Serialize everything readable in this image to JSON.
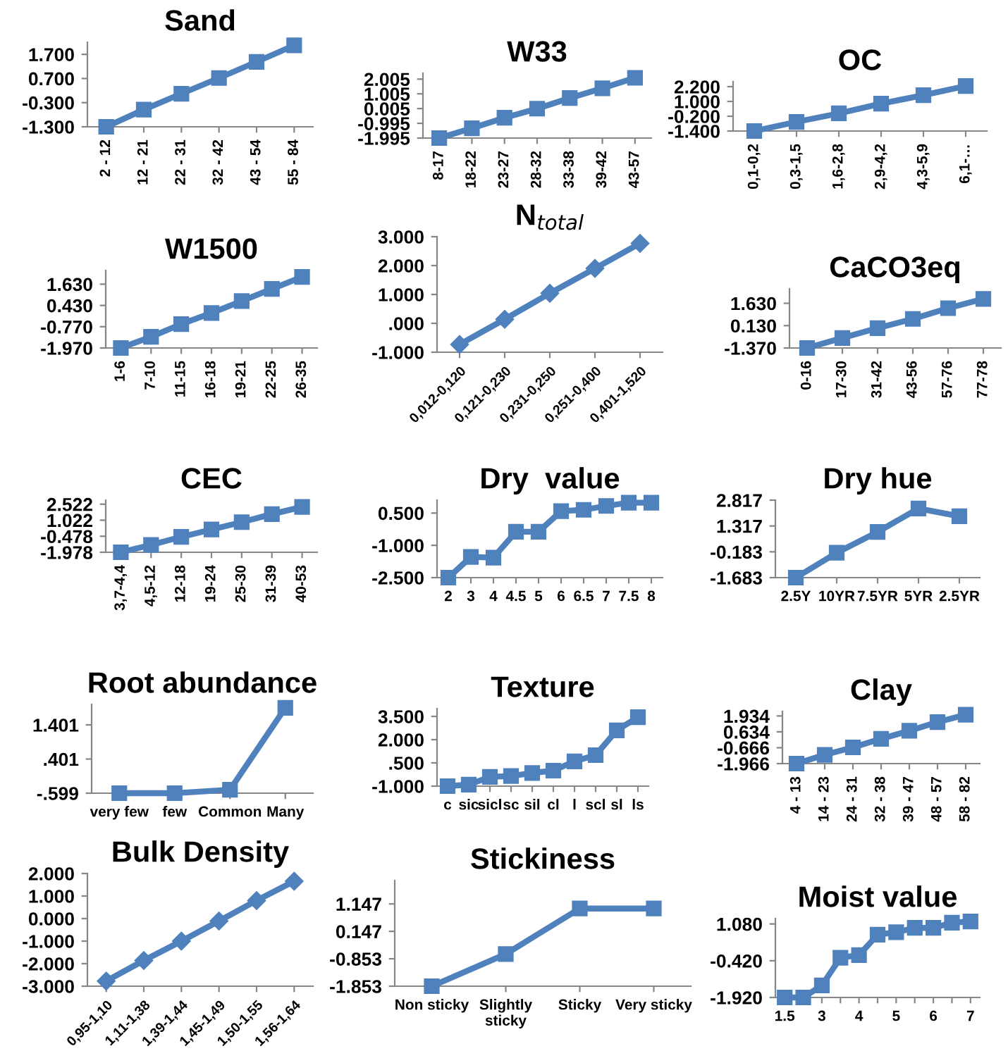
{
  "chart_data": [
    {
      "type": "line",
      "title": "Sand",
      "categories": [
        "2 - 12",
        "12 - 21",
        "22 - 31",
        "32 - 42",
        "43 - 54",
        "55 - 84"
      ],
      "values": [
        -1.3,
        -0.59,
        0.07,
        0.72,
        1.39,
        2.07
      ],
      "color": "#4f81bd",
      "marker": "square",
      "ylim": [
        -1.3,
        2.2
      ],
      "yticks": [
        {
          "value": -1.3,
          "label": "-1.300"
        },
        {
          "value": -0.3,
          "label": "-0.300"
        },
        {
          "value": 0.7,
          "label": "0.700"
        },
        {
          "value": 1.7,
          "label": "1.700"
        }
      ],
      "grid": false
    },
    {
      "type": "line",
      "title": "W33",
      "categories": [
        "8-17",
        "18-22",
        "23-27",
        "28-32",
        "33-38",
        "39-42",
        "43-57"
      ],
      "values": [
        -1.995,
        -1.33,
        -0.62,
        0.0,
        0.72,
        1.38,
        2.09
      ],
      "color": "#4f81bd",
      "marker": "square",
      "ylim": [
        -1.995,
        2.4
      ],
      "yticks": [
        {
          "value": -1.995,
          "label": "-1.995"
        },
        {
          "value": -0.995,
          "label": "-0.995"
        },
        {
          "value": 0.005,
          "label": "0.005"
        },
        {
          "value": 1.005,
          "label": "1.005"
        },
        {
          "value": 2.005,
          "label": "2.005"
        }
      ],
      "grid": false
    },
    {
      "type": "line",
      "title": "OC",
      "categories": [
        "0,1-0,2",
        "0,3-1,5",
        "1,6-2,8",
        "2,9-4,2",
        "4,3-5,9",
        "6,1-…"
      ],
      "values": [
        -1.4,
        -0.66,
        0.03,
        0.82,
        1.51,
        2.25
      ],
      "color": "#4f81bd",
      "marker": "square",
      "ylim": [
        -1.4,
        2.6
      ],
      "yticks": [
        {
          "value": -1.4,
          "label": "-1.400"
        },
        {
          "value": -0.2,
          "label": "-0.200"
        },
        {
          "value": 1.0,
          "label": "1.000"
        },
        {
          "value": 2.2,
          "label": "2.200"
        }
      ],
      "grid": false
    },
    {
      "type": "line",
      "title": "W1500",
      "categories": [
        "1-6",
        "7-10",
        "11-15",
        "16-18",
        "19-21",
        "22-25",
        "26-35"
      ],
      "values": [
        -1.97,
        -1.34,
        -0.62,
        0.0,
        0.68,
        1.36,
        2.04
      ],
      "color": "#4f81bd",
      "marker": "square",
      "ylim": [
        -1.97,
        2.4
      ],
      "yticks": [
        {
          "value": -1.97,
          "label": "-1.970"
        },
        {
          "value": -0.77,
          "label": "-0.770"
        },
        {
          "value": 0.43,
          "label": "0.430"
        },
        {
          "value": 1.63,
          "label": "1.630"
        }
      ],
      "grid": false
    },
    {
      "type": "line",
      "title": "N$_{total}$",
      "categories": [
        "0,012-0,120",
        "0,121-0,230",
        "0,231-0,250",
        "0,251-0,400",
        "0,401-1,520"
      ],
      "values": [
        -0.73,
        0.14,
        1.04,
        1.9,
        2.77
      ],
      "color": "#4f81bd",
      "marker": "diamond",
      "ylim": [
        -1.0,
        3.0
      ],
      "yticks": [
        {
          "value": -1.0,
          "label": "-1.000"
        },
        {
          "value": 0,
          "label": ".000"
        },
        {
          "value": 1.0,
          "label": "1.000"
        },
        {
          "value": 2.0,
          "label": "2.000"
        },
        {
          "value": 3.0,
          "label": "3.000"
        }
      ],
      "grid": false
    },
    {
      "type": "line",
      "title": "CaCO3eq",
      "categories": [
        "0-16",
        "17-30",
        "31-42",
        "43-56",
        "57-76",
        "77-78"
      ],
      "values": [
        -1.37,
        -0.7,
        -0.04,
        0.58,
        1.3,
        1.92
      ],
      "color": "#4f81bd",
      "marker": "square",
      "ylim": [
        -1.37,
        2.6
      ],
      "yticks": [
        {
          "value": -1.37,
          "label": "-1.370"
        },
        {
          "value": 0.13,
          "label": "0.130"
        },
        {
          "value": 1.63,
          "label": "1.630"
        }
      ],
      "grid": false
    },
    {
      "type": "line",
      "title": "CEC",
      "categories": [
        "3,7-4,4",
        "4,5-12",
        "12-18",
        "19-24",
        "25-30",
        "31-39",
        "40-53"
      ],
      "values": [
        -1.978,
        -1.29,
        -0.54,
        0.15,
        0.84,
        1.59,
        2.27
      ],
      "color": "#4f81bd",
      "marker": "square",
      "ylim": [
        -1.978,
        2.9
      ],
      "yticks": [
        {
          "value": -1.978,
          "label": "-1.978"
        },
        {
          "value": -0.478,
          "label": "-0.478"
        },
        {
          "value": 1.022,
          "label": "1.022"
        },
        {
          "value": 2.522,
          "label": "2.522"
        }
      ],
      "grid": false
    },
    {
      "type": "line",
      "title": "Dry  value",
      "categories": [
        "2",
        "3",
        "4",
        "4.5",
        "5",
        "6",
        "6.5",
        "7",
        "7.5",
        "8"
      ],
      "values": [
        -2.5,
        -1.54,
        -1.57,
        -0.37,
        -0.37,
        0.59,
        0.65,
        0.83,
        0.98,
        0.98
      ],
      "color": "#4f81bd",
      "marker": "square",
      "ylim": [
        -2.5,
        1.1
      ],
      "yticks": [
        {
          "value": -2.5,
          "label": "-2.500"
        },
        {
          "value": -1.0,
          "label": "-1.000"
        },
        {
          "value": 0.5,
          "label": "0.500"
        }
      ],
      "grid": false
    },
    {
      "type": "line",
      "title": "Dry hue",
      "categories": [
        "2.5Y",
        "10YR",
        "7.5YR",
        "5YR",
        "2.5YR"
      ],
      "values": [
        -1.683,
        -0.24,
        0.97,
        2.33,
        1.88
      ],
      "color": "#4f81bd",
      "marker": "square",
      "ylim": [
        -1.683,
        2.817
      ],
      "yticks": [
        {
          "value": -1.683,
          "label": "-1.683"
        },
        {
          "value": -0.183,
          "label": "-0.183"
        },
        {
          "value": 1.317,
          "label": "1.317"
        },
        {
          "value": 2.817,
          "label": "2.817"
        }
      ],
      "grid": false
    },
    {
      "type": "line",
      "title": "Root abundance",
      "categories": [
        "very few",
        "few",
        "Common",
        "Many"
      ],
      "values": [
        -0.599,
        -0.599,
        -0.5,
        1.9
      ],
      "color": "#4f81bd",
      "marker": "square",
      "ylim": [
        -0.599,
        2.0
      ],
      "yticks": [
        {
          "value": -0.599,
          "label": "-.599"
        },
        {
          "value": 0.401,
          "label": ".401"
        },
        {
          "value": 1.401,
          "label": "1.401"
        }
      ],
      "grid": false
    },
    {
      "type": "line",
      "title": "Texture",
      "categories": [
        "c",
        "sic",
        "sicl",
        "sc",
        "sil",
        "cl",
        "l",
        "scl",
        "sl",
        "ls"
      ],
      "values": [
        -1.0,
        -0.9,
        -0.4,
        -0.35,
        -0.15,
        0.0,
        0.6,
        1.0,
        2.6,
        3.45
      ],
      "color": "#4f81bd",
      "marker": "square",
      "ylim": [
        -1.0,
        4.0
      ],
      "yticks": [
        {
          "value": -1.0,
          "label": "-1.000"
        },
        {
          "value": 0.5,
          "label": ".500"
        },
        {
          "value": 2.0,
          "label": "2.000"
        },
        {
          "value": 3.5,
          "label": "3.500"
        }
      ],
      "grid": false
    },
    {
      "type": "line",
      "title": "Clay",
      "categories": [
        "4 - 13",
        "14 - 23",
        "24 - 31",
        "32 - 38",
        "39 - 47",
        "48 - 57",
        "58 - 82"
      ],
      "values": [
        -1.966,
        -1.25,
        -0.64,
        0.06,
        0.72,
        1.43,
        2.03
      ],
      "color": "#4f81bd",
      "marker": "square",
      "ylim": [
        -1.966,
        2.3
      ],
      "yticks": [
        {
          "value": -1.966,
          "label": "-1.966"
        },
        {
          "value": -0.666,
          "label": "-0.666"
        },
        {
          "value": 0.634,
          "label": "0.634"
        },
        {
          "value": 1.934,
          "label": "1.934"
        }
      ],
      "grid": false
    },
    {
      "type": "line",
      "title": "Bulk Density",
      "categories": [
        "0,95-1,10",
        "1,11-1,38",
        "1,39-1,44",
        "1,45-1,49",
        "1,50-1,55",
        "1,56-1,64"
      ],
      "values": [
        -2.77,
        -1.86,
        -1.0,
        -0.11,
        0.8,
        1.66
      ],
      "color": "#4f81bd",
      "marker": "diamond",
      "ylim": [
        -3.0,
        2.0
      ],
      "yticks": [
        {
          "value": -3.0,
          "label": "-3.000"
        },
        {
          "value": -2.0,
          "label": "-2.000"
        },
        {
          "value": -1.0,
          "label": "-1.000"
        },
        {
          "value": 0.0,
          "label": "0.000"
        },
        {
          "value": 1.0,
          "label": "1.000"
        },
        {
          "value": 2.0,
          "label": "2.000"
        }
      ],
      "grid": false
    },
    {
      "type": "line",
      "title": "Stickiness",
      "categories": [
        "Non sticky",
        "Slightly\nsticky",
        "Sticky",
        "Very sticky"
      ],
      "values": [
        -1.853,
        -0.68,
        0.98,
        0.98
      ],
      "color": "#4f81bd",
      "marker": "square",
      "ylim": [
        -1.853,
        2.0
      ],
      "yticks": [
        {
          "value": -1.853,
          "label": "-1.853"
        },
        {
          "value": -0.853,
          "label": "-0.853"
        },
        {
          "value": 0.147,
          "label": "0.147"
        },
        {
          "value": 1.147,
          "label": "1.147"
        }
      ],
      "grid": false
    },
    {
      "type": "line",
      "title": "Moist value",
      "categories": [
        "1.5",
        null,
        "3",
        null,
        "4",
        null,
        "5",
        null,
        "6",
        null,
        "7"
      ],
      "values": [
        -1.92,
        -1.92,
        -1.43,
        -0.3,
        -0.19,
        0.64,
        0.74,
        0.92,
        0.92,
        1.13,
        1.18
      ],
      "color": "#4f81bd",
      "marker": "square",
      "ylim": [
        -1.92,
        1.3
      ],
      "yticks": [
        {
          "value": -1.92,
          "label": "-1.920"
        },
        {
          "value": -0.42,
          "label": "-0.420"
        },
        {
          "value": 1.08,
          "label": "1.080"
        }
      ],
      "grid": false
    }
  ]
}
